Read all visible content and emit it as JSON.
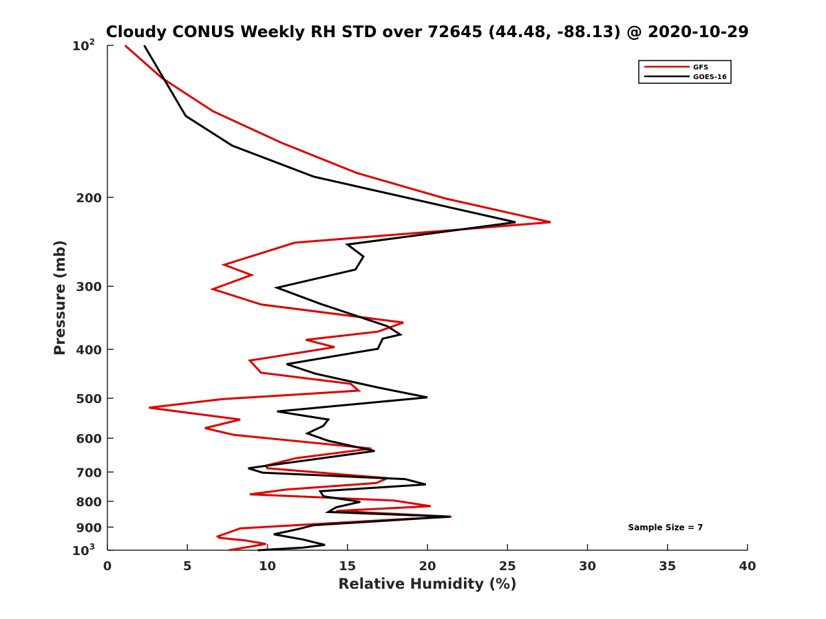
{
  "chart_data": {
    "type": "line",
    "title": "Cloudy CONUS Weekly RH STD over 72645 (44.48, -88.13) @ 2020-10-29",
    "xlabel": "Relative Humidity (%)",
    "ylabel": "Pressure (mb)",
    "xlim": [
      0,
      40
    ],
    "ylim": [
      100,
      1000
    ],
    "yscale": "log",
    "yreversed": true,
    "x_ticks": [
      0,
      5,
      10,
      15,
      20,
      25,
      30,
      35,
      40
    ],
    "y_ticks": [
      {
        "value": 100,
        "label": "10",
        "exp": "2"
      },
      {
        "value": 200,
        "label": "200"
      },
      {
        "value": 300,
        "label": "300"
      },
      {
        "value": 400,
        "label": "400"
      },
      {
        "value": 500,
        "label": "500"
      },
      {
        "value": 600,
        "label": "600"
      },
      {
        "value": 700,
        "label": "700"
      },
      {
        "value": 800,
        "label": "800"
      },
      {
        "value": 900,
        "label": "900"
      },
      {
        "value": 1000,
        "label": "10",
        "exp": "3"
      }
    ],
    "grid": false,
    "legend_position": "top-right",
    "series": [
      {
        "name": "GFS",
        "color": "#e00000",
        "points": [
          [
            1.1,
            100
          ],
          [
            3.4,
            116
          ],
          [
            6.6,
            135
          ],
          [
            10.9,
            156
          ],
          [
            15.6,
            179
          ],
          [
            21.1,
            201
          ],
          [
            27.7,
            224
          ],
          [
            11.7,
            246
          ],
          [
            7.3,
            272
          ],
          [
            9.0,
            285
          ],
          [
            6.6,
            304
          ],
          [
            9.6,
            326
          ],
          [
            18.5,
            354
          ],
          [
            16.9,
            369
          ],
          [
            12.4,
            383
          ],
          [
            14.2,
            396
          ],
          [
            8.9,
            421
          ],
          [
            9.6,
            445
          ],
          [
            15.2,
            468
          ],
          [
            15.7,
            483
          ],
          [
            7.2,
            502
          ],
          [
            2.6,
            522
          ],
          [
            8.3,
            551
          ],
          [
            6.1,
            573
          ],
          [
            7.9,
            591
          ],
          [
            16.5,
            629
          ],
          [
            11.8,
            657
          ],
          [
            9.9,
            680
          ],
          [
            10.0,
            688
          ],
          [
            17.5,
            720
          ],
          [
            16.8,
            736
          ],
          [
            11.2,
            758
          ],
          [
            8.9,
            775
          ],
          [
            17.9,
            797
          ],
          [
            20.2,
            818
          ],
          [
            14.3,
            836
          ],
          [
            21.5,
            858
          ],
          [
            19.0,
            866
          ],
          [
            8.3,
            905
          ],
          [
            6.9,
            939
          ],
          [
            7.0,
            945
          ],
          [
            8.6,
            956
          ],
          [
            9.9,
            972
          ],
          [
            7.6,
            1000
          ]
        ]
      },
      {
        "name": "GOES-16",
        "color": "#000000",
        "points": [
          [
            2.3,
            100
          ],
          [
            4.9,
            138
          ],
          [
            7.8,
            158
          ],
          [
            12.9,
            182
          ],
          [
            25.5,
            224
          ],
          [
            15.0,
            248
          ],
          [
            16.0,
            262
          ],
          [
            15.5,
            278
          ],
          [
            10.6,
            302
          ],
          [
            13.3,
            325
          ],
          [
            17.5,
            360
          ],
          [
            18.3,
            374
          ],
          [
            17.2,
            381
          ],
          [
            16.9,
            399
          ],
          [
            11.2,
            428
          ],
          [
            13.0,
            447
          ],
          [
            16.9,
            476
          ],
          [
            20.0,
            498
          ],
          [
            10.6,
            531
          ],
          [
            13.8,
            551
          ],
          [
            13.5,
            567
          ],
          [
            12.5,
            587
          ],
          [
            13.8,
            607
          ],
          [
            16.7,
            636
          ],
          [
            13.0,
            660
          ],
          [
            8.8,
            688
          ],
          [
            9.7,
            702
          ],
          [
            18.6,
            723
          ],
          [
            19.9,
            741
          ],
          [
            13.3,
            764
          ],
          [
            13.5,
            782
          ],
          [
            15.8,
            802
          ],
          [
            14.3,
            822
          ],
          [
            13.8,
            840
          ],
          [
            21.4,
            858
          ],
          [
            12.9,
            892
          ],
          [
            11.8,
            910
          ],
          [
            10.4,
            930
          ],
          [
            12.2,
            952
          ],
          [
            13.6,
            976
          ],
          [
            12.2,
            988
          ],
          [
            9.4,
            1000
          ]
        ]
      }
    ],
    "annotation": "Sample Size = 7"
  }
}
